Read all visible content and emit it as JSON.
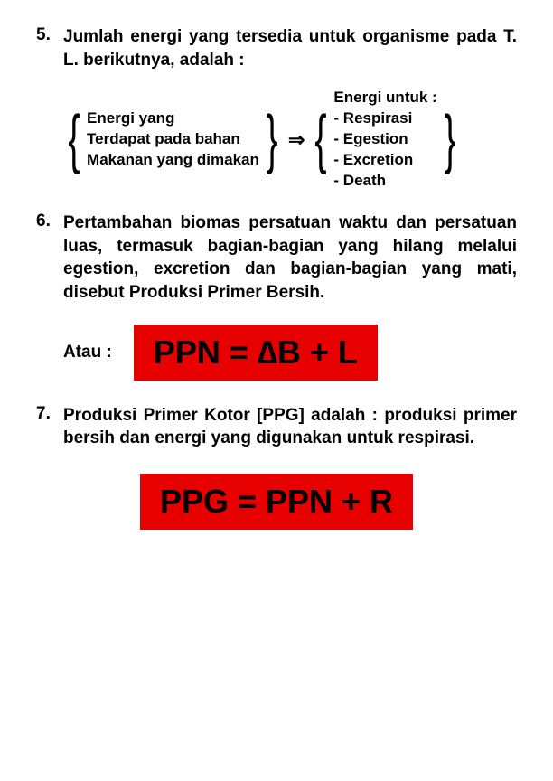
{
  "item5": {
    "num": "5.",
    "text": "Jumlah energi yang tersedia untuk organisme pada T. L. berikutnya, adalah :",
    "left": {
      "l1": "Energi yang",
      "l2": "Terdapat pada bahan",
      "l3": "Makanan yang dimakan"
    },
    "arrow": "⇒",
    "right": {
      "l1": "Energi untuk :",
      "l2": "- Respirasi",
      "l3": "- Egestion",
      "l4": "- Excretion",
      "l5": "- Death"
    }
  },
  "item6": {
    "num": "6.",
    "text": "Pertambahan biomas persatuan waktu dan persatuan luas, termasuk bagian-bagian yang hilang melalui egestion, excretion dan bagian-bagian yang mati, disebut Produksi Primer Bersih.",
    "atau": "Atau :",
    "formula": "PPN = ∆B + L"
  },
  "item7": {
    "num": "7.",
    "text": "Produksi Primer Kotor [PPG] adalah : produksi primer bersih dan energi yang digunakan untuk respirasi.",
    "formula": "PPG = PPN + R"
  },
  "colors": {
    "formula_bg": "#e60000",
    "text": "#000000",
    "background": "#ffffff"
  }
}
